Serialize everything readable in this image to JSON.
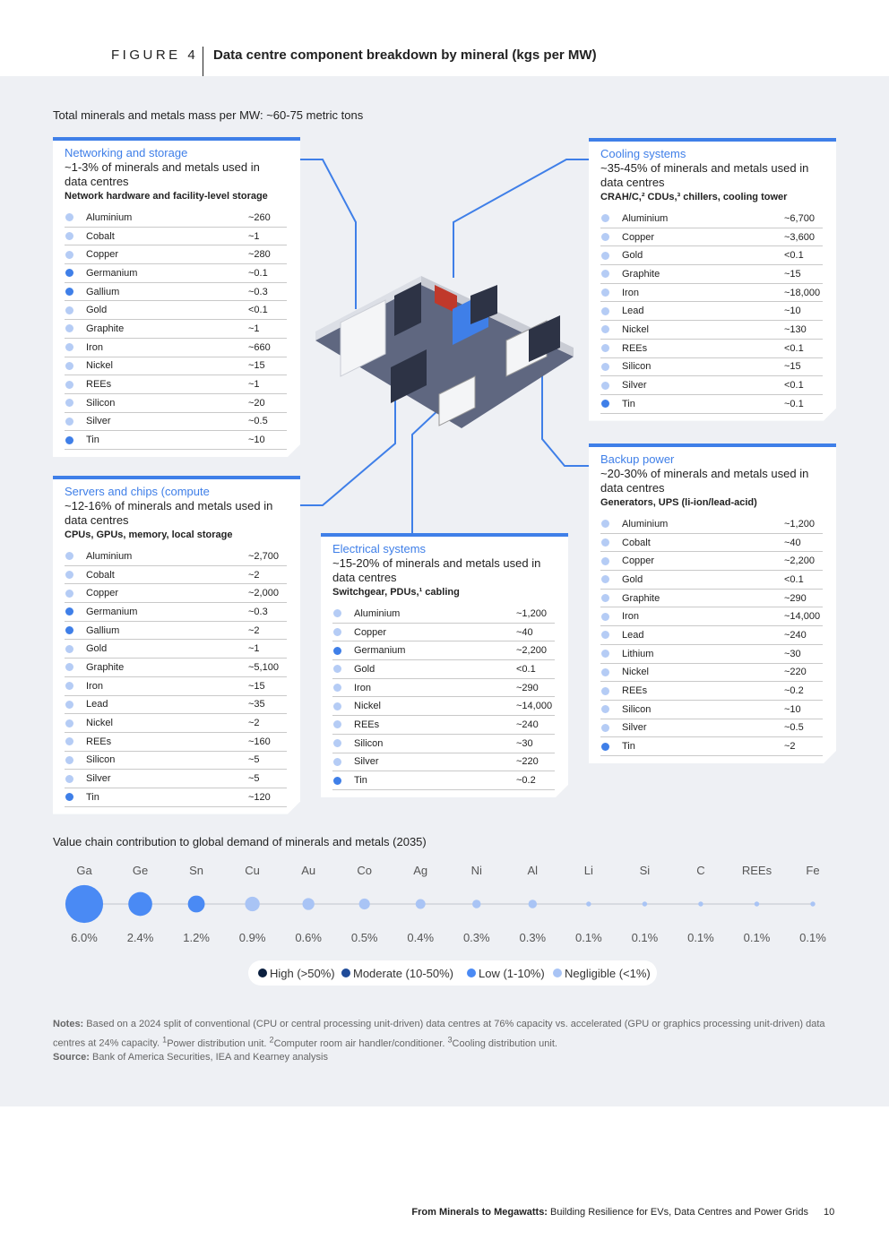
{
  "header": {
    "figure_label": "FIGURE 4",
    "title": "Data centre component breakdown by mineral (kgs per MW)"
  },
  "intro": {
    "label": "Total minerals and metals mass per MW:",
    "text": "~60-75 metric tons"
  },
  "cards": [
    {
      "title": "Networking and storage",
      "share": "~1-3% of minerals and metals used in data centres",
      "components": "Network hardware and facility-level storage",
      "rows": [
        {
          "mineral": "Aluminium",
          "amount": "~260",
          "color": "#b5ccf5"
        },
        {
          "mineral": "Cobalt",
          "amount": "~1",
          "color": "#b5ccf5"
        },
        {
          "mineral": "Copper",
          "amount": "~280",
          "color": "#b5ccf5"
        },
        {
          "mineral": "Germanium",
          "amount": "~0.1",
          "color": "#3f7fe8"
        },
        {
          "mineral": "Gallium",
          "amount": "~0.3",
          "color": "#3f7fe8"
        },
        {
          "mineral": "Gold",
          "amount": "<0.1",
          "color": "#b5ccf5"
        },
        {
          "mineral": "Graphite",
          "amount": "~1",
          "color": "#b5ccf5"
        },
        {
          "mineral": "Iron",
          "amount": "~660",
          "color": "#b5ccf5"
        },
        {
          "mineral": "Nickel",
          "amount": "~15",
          "color": "#b5ccf5"
        },
        {
          "mineral": "REEs",
          "amount": "~1",
          "color": "#b5ccf5"
        },
        {
          "mineral": "Silicon",
          "amount": "~20",
          "color": "#b5ccf5"
        },
        {
          "mineral": "Silver",
          "amount": "~0.5",
          "color": "#b5ccf5"
        },
        {
          "mineral": "Tin",
          "amount": "~10",
          "color": "#3f7fe8"
        }
      ]
    },
    {
      "title": "Servers and chips (compute",
      "share": "~12-16% of minerals and metals used in data centres",
      "components": "CPUs, GPUs, memory, local storage",
      "rows": [
        {
          "mineral": "Aluminium",
          "amount": "~2,700",
          "color": "#b5ccf5"
        },
        {
          "mineral": "Cobalt",
          "amount": "~2",
          "color": "#b5ccf5"
        },
        {
          "mineral": "Copper",
          "amount": "~2,000",
          "color": "#b5ccf5"
        },
        {
          "mineral": "Germanium",
          "amount": "~0.3",
          "color": "#3f7fe8"
        },
        {
          "mineral": "Gallium",
          "amount": "~2",
          "color": "#3f7fe8"
        },
        {
          "mineral": "Gold",
          "amount": "~1",
          "color": "#b5ccf5"
        },
        {
          "mineral": "Graphite",
          "amount": "~5,100",
          "color": "#b5ccf5"
        },
        {
          "mineral": "Iron",
          "amount": "~15",
          "color": "#b5ccf5"
        },
        {
          "mineral": "Lead",
          "amount": "~35",
          "color": "#b5ccf5"
        },
        {
          "mineral": "Nickel",
          "amount": "~2",
          "color": "#b5ccf5"
        },
        {
          "mineral": "REEs",
          "amount": "~160",
          "color": "#b5ccf5"
        },
        {
          "mineral": "Silicon",
          "amount": "~5",
          "color": "#b5ccf5"
        },
        {
          "mineral": "Silver",
          "amount": "~5",
          "color": "#b5ccf5"
        },
        {
          "mineral": "Tin",
          "amount": "~120",
          "color": "#3f7fe8"
        }
      ]
    },
    {
      "title": "Electrical systems",
      "share": "~15-20% of minerals and metals used in data centres",
      "components": "Switchgear, PDUs,¹ cabling",
      "rows": [
        {
          "mineral": "Aluminium",
          "amount": "~1,200",
          "color": "#b5ccf5"
        },
        {
          "mineral": "Copper",
          "amount": "~40",
          "color": "#b5ccf5"
        },
        {
          "mineral": "Germanium",
          "amount": "~2,200",
          "color": "#3f7fe8"
        },
        {
          "mineral": "Gold",
          "amount": "<0.1",
          "color": "#b5ccf5"
        },
        {
          "mineral": "Iron",
          "amount": "~290",
          "color": "#b5ccf5"
        },
        {
          "mineral": "Nickel",
          "amount": "~14,000",
          "color": "#b5ccf5"
        },
        {
          "mineral": "REEs",
          "amount": "~240",
          "color": "#b5ccf5"
        },
        {
          "mineral": "Silicon",
          "amount": "~30",
          "color": "#b5ccf5"
        },
        {
          "mineral": "Silver",
          "amount": "~220",
          "color": "#b5ccf5"
        },
        {
          "mineral": "Tin",
          "amount": "~0.2",
          "color": "#3f7fe8"
        }
      ]
    },
    {
      "title": "Cooling systems",
      "share": "~35-45% of minerals and metals used in data centres",
      "components": "CRAH/C,² CDUs,³ chillers, cooling tower",
      "rows": [
        {
          "mineral": "Aluminium",
          "amount": "~6,700",
          "color": "#b5ccf5"
        },
        {
          "mineral": "Copper",
          "amount": "~3,600",
          "color": "#b5ccf5"
        },
        {
          "mineral": "Gold",
          "amount": "<0.1",
          "color": "#b5ccf5"
        },
        {
          "mineral": "Graphite",
          "amount": "~15",
          "color": "#b5ccf5"
        },
        {
          "mineral": "Iron",
          "amount": "~18,000",
          "color": "#b5ccf5"
        },
        {
          "mineral": "Lead",
          "amount": "~10",
          "color": "#b5ccf5"
        },
        {
          "mineral": "Nickel",
          "amount": "~130",
          "color": "#b5ccf5"
        },
        {
          "mineral": "REEs",
          "amount": "<0.1",
          "color": "#b5ccf5"
        },
        {
          "mineral": "Silicon",
          "amount": "~15",
          "color": "#b5ccf5"
        },
        {
          "mineral": "Silver",
          "amount": "<0.1",
          "color": "#b5ccf5"
        },
        {
          "mineral": "Tin",
          "amount": "~0.1",
          "color": "#3f7fe8"
        }
      ]
    },
    {
      "title": "Backup power",
      "share": "~20-30% of minerals and metals used in data centres",
      "components": "Generators, UPS (li-ion/lead-acid)",
      "rows": [
        {
          "mineral": "Aluminium",
          "amount": "~1,200",
          "color": "#b5ccf5"
        },
        {
          "mineral": "Cobalt",
          "amount": "~40",
          "color": "#b5ccf5"
        },
        {
          "mineral": "Copper",
          "amount": "~2,200",
          "color": "#b5ccf5"
        },
        {
          "mineral": "Gold",
          "amount": "<0.1",
          "color": "#b5ccf5"
        },
        {
          "mineral": "Graphite",
          "amount": "~290",
          "color": "#b5ccf5"
        },
        {
          "mineral": "Iron",
          "amount": "~14,000",
          "color": "#b5ccf5"
        },
        {
          "mineral": "Lead",
          "amount": "~240",
          "color": "#b5ccf5"
        },
        {
          "mineral": "Lithium",
          "amount": "~30",
          "color": "#b5ccf5"
        },
        {
          "mineral": "Nickel",
          "amount": "~220",
          "color": "#b5ccf5"
        },
        {
          "mineral": "REEs",
          "amount": "~0.2",
          "color": "#b5ccf5"
        },
        {
          "mineral": "Silicon",
          "amount": "~10",
          "color": "#b5ccf5"
        },
        {
          "mineral": "Silver",
          "amount": "~0.5",
          "color": "#b5ccf5"
        },
        {
          "mineral": "Tin",
          "amount": "~2",
          "color": "#3f7fe8"
        }
      ]
    }
  ],
  "demand_chart": {
    "title": "Value chain contribution to global demand of minerals and metals (2035)",
    "symbols": [
      "Ga",
      "Ge",
      "Sn",
      "Cu",
      "Au",
      "Co",
      "Ag",
      "Ni",
      "Al",
      "Li",
      "Si",
      "C",
      "REEs",
      "Fe"
    ],
    "values": [
      6.0,
      2.4,
      1.2,
      0.9,
      0.6,
      0.5,
      0.4,
      0.3,
      0.3,
      0.1,
      0.1,
      0.1,
      0.1,
      0.1
    ],
    "value_labels": [
      "6.0%",
      "2.4%",
      "1.2%",
      "0.9%",
      "0.6%",
      "0.5%",
      "0.4%",
      "0.3%",
      "0.3%",
      "0.1%",
      "0.1%",
      "0.1%",
      "0.1%",
      "0.1%"
    ],
    "colors": [
      "#4a8af4",
      "#4a8af4",
      "#4a8af4",
      "#a9c4f5",
      "#a9c4f5",
      "#a9c4f5",
      "#a9c4f5",
      "#a9c4f5",
      "#a9c4f5",
      "#a9c4f5",
      "#a9c4f5",
      "#a9c4f5",
      "#a9c4f5",
      "#a9c4f5"
    ],
    "legend": [
      {
        "name": "High (>50%)",
        "color": "#0b1f3f"
      },
      {
        "name": "Moderate (10-50%)",
        "color": "#1f4b99"
      },
      {
        "name": "Low (1-10%)",
        "color": "#4a8af4"
      },
      {
        "name": "Negligible (<1%)",
        "color": "#a9c4f5"
      }
    ]
  },
  "notes": {
    "label": "Notes:",
    "text": "Based on a 2024 split of conventional (CPU or central processing unit-driven) data centres at 76% capacity vs. accelerated (GPU or graphics processing unit-driven) data centres at 24% capacity.",
    "footnotes": [
      {
        "mark": "1",
        "text": "Power distribution unit."
      },
      {
        "mark": "2",
        "text": "Computer room air handler/conditioner."
      },
      {
        "mark": "3",
        "text": "Cooling distribution unit."
      }
    ]
  },
  "source": {
    "label": "Source:",
    "text": "Bank of America Securities, IEA and Kearney analysis"
  },
  "footer": {
    "title": "From Minerals to Megawatts:",
    "subtitle": "Building Resilience for EVs, Data Centres and Power Grids",
    "page": "10"
  }
}
